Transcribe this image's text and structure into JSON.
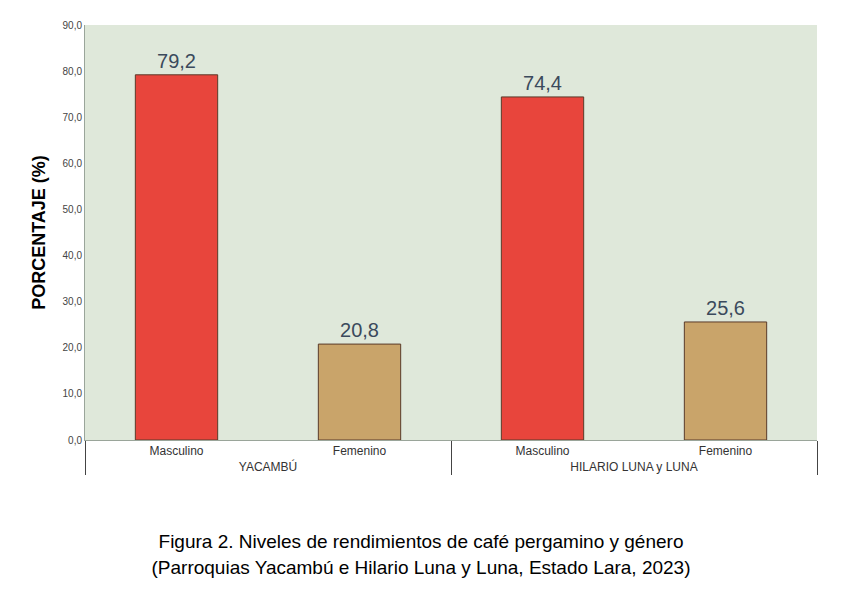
{
  "chart_data": {
    "type": "bar",
    "caption": [
      "Figura 2. Niveles de rendimientos de café pergamino y género",
      "(Parroquias Yacambú e Hilario Luna y Luna, Estado Lara, 2023)"
    ],
    "y_label": "PORCENTAJE (%)",
    "groups": [
      "YACAMBÚ",
      "YACAMBÚ",
      "HILARIO LUNA y LUNA",
      "HILARIO LUNA y LUNA"
    ],
    "categories": [
      "Masculino",
      "Femenino",
      "Masculino",
      "Femenino"
    ],
    "values": [
      79.2,
      20.8,
      74.4,
      25.6
    ],
    "value_labels": [
      "79,2",
      "20,8",
      "74,4",
      "25,6"
    ],
    "colors": [
      "#e8453c",
      "#c9a46a",
      "#e8453c",
      "#c9a46a"
    ],
    "ylim": [
      0,
      90
    ],
    "yticks": [
      {
        "value": 0,
        "label": "0,0"
      },
      {
        "value": 10,
        "label": "10,0"
      },
      {
        "value": 20,
        "label": "20,0"
      },
      {
        "value": 30,
        "label": "30,0"
      },
      {
        "value": 40,
        "label": "40,0"
      },
      {
        "value": 50,
        "label": "50,0"
      },
      {
        "value": 60,
        "label": "60,0"
      },
      {
        "value": 70,
        "label": "70,0"
      },
      {
        "value": 80,
        "label": "80,0"
      },
      {
        "value": 90,
        "label": "90,0"
      }
    ],
    "grid": false,
    "data_labels": true
  }
}
